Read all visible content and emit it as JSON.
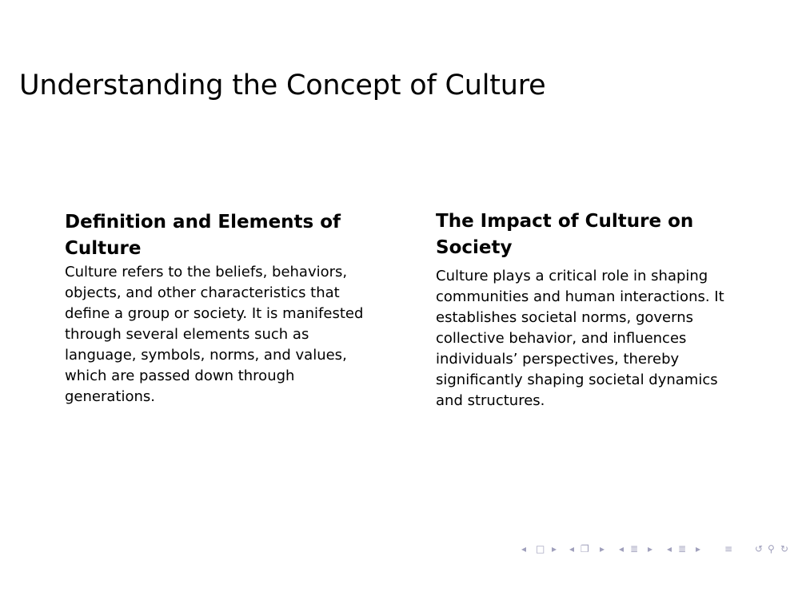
{
  "slide": {
    "title": "Understanding the Concept of Culture",
    "left": {
      "heading": "Definition and Elements of Culture",
      "body": "Culture refers to the beliefs, behaviors, objects, and other characteristics that define a group or society. It is manifested through several elements such as language, symbols, norms, and values, which are passed down through generations."
    },
    "right": {
      "heading": "The Impact of Culture on Society",
      "body": "Culture plays a critical role in shaping communities and human interactions. It establishes societal norms, governs collective behavior, and influences individuals’ perspectives, thereby significantly shaping societal dynamics and structures."
    }
  },
  "navigation": {
    "color": "#a0a0bc",
    "icons": [
      "arrow-left-icon",
      "frame-icon",
      "arrow-right-icon",
      "arrow-left-icon",
      "subsection-icon",
      "arrow-right-icon",
      "arrow-left-icon",
      "section-icon",
      "arrow-right-icon",
      "arrow-left-icon",
      "subsection-list-icon",
      "arrow-right-icon",
      "align-icon",
      "undo-icon",
      "search-icon",
      "redo-icon"
    ]
  }
}
